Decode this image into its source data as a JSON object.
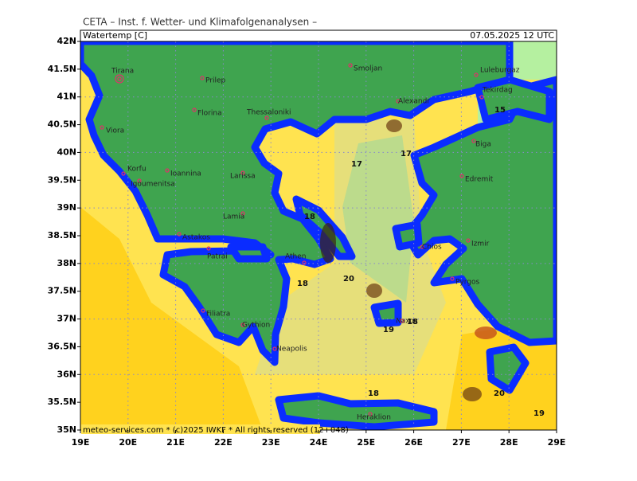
{
  "header": {
    "institute": "CETA – Inst. f. Wetter- und Klimafolgenanalysen –",
    "variable": "Watertemp [C]",
    "valid_time": "07.05.2025 12 UTC"
  },
  "footer": "meteo-services.com * (c)2025 IWKF * All rights reserved (12+048)",
  "axes": {
    "lat_ticks": [
      {
        "value": 42,
        "label": "42N"
      },
      {
        "value": 41.5,
        "label": "41.5N"
      },
      {
        "value": 41,
        "label": "41N"
      },
      {
        "value": 40.5,
        "label": "40.5N"
      },
      {
        "value": 40,
        "label": "40N"
      },
      {
        "value": 39.5,
        "label": "39.5N"
      },
      {
        "value": 39,
        "label": "39N"
      },
      {
        "value": 38.5,
        "label": "38.5N"
      },
      {
        "value": 38,
        "label": "38N"
      },
      {
        "value": 37.5,
        "label": "37.5N"
      },
      {
        "value": 37,
        "label": "37N"
      },
      {
        "value": 36.5,
        "label": "36.5N"
      },
      {
        "value": 36,
        "label": "36N"
      },
      {
        "value": 35.5,
        "label": "35.5N"
      },
      {
        "value": 35,
        "label": "35N"
      }
    ],
    "lon_ticks": [
      {
        "value": 19,
        "label": "19E"
      },
      {
        "value": 20,
        "label": "20E"
      },
      {
        "value": 21,
        "label": "21E"
      },
      {
        "value": 22,
        "label": "22E"
      },
      {
        "value": 23,
        "label": "23E"
      },
      {
        "value": 24,
        "label": "24E"
      },
      {
        "value": 25,
        "label": "25E"
      },
      {
        "value": 26,
        "label": "26E"
      },
      {
        "value": 27,
        "label": "27E"
      },
      {
        "value": 28,
        "label": "28E"
      },
      {
        "value": 29,
        "label": "29E"
      }
    ]
  },
  "cities": [
    "Tirana",
    "Prilep",
    "Smoljan",
    "Luleburgaz",
    "Tekirdag",
    "Alexandr",
    "Florina",
    "Thessaloniki",
    "Viora",
    "Biga",
    "Korfu",
    "Ioannina",
    "Igoumenitsa",
    "Larissa",
    "Edremit",
    "Lamia",
    "Astakos",
    "Patrai",
    "Izmir",
    "Athen",
    "Chios",
    "Pyrgos",
    "Filiatra",
    "Gythion",
    "Naxos",
    "Neapolis",
    "Heraklion"
  ],
  "isotherm_labels": [
    17,
    17,
    18,
    20,
    18,
    19,
    18,
    15,
    18,
    20,
    19
  ]
}
